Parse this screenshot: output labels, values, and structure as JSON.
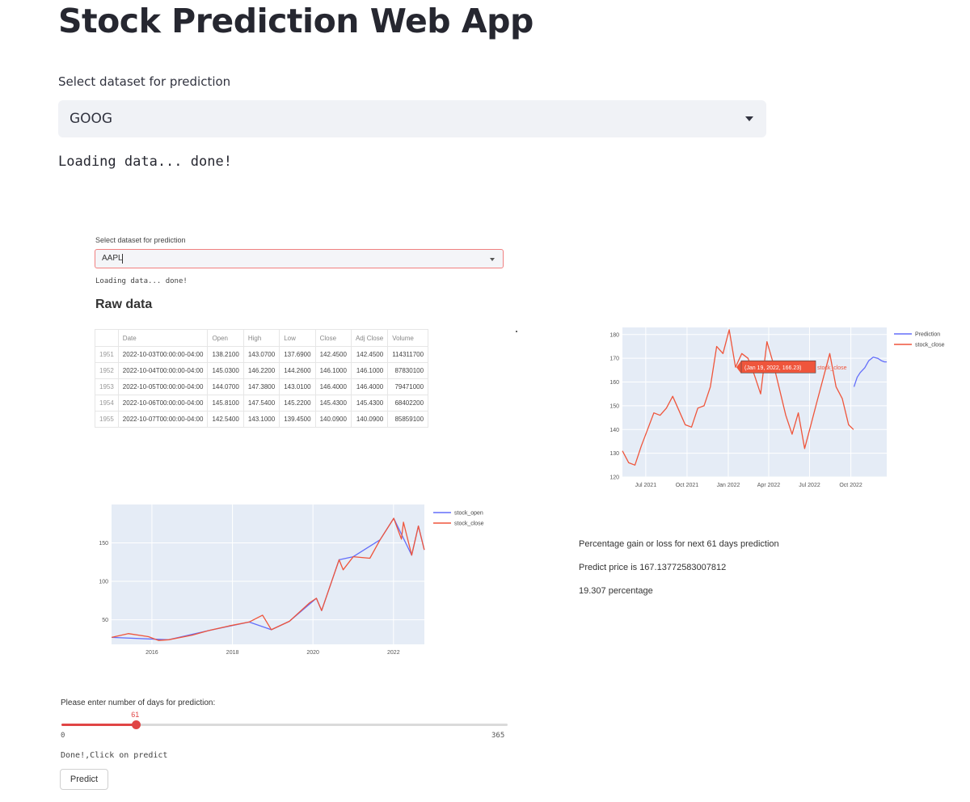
{
  "header": {
    "title": "Stock Prediction Web App",
    "select_label": "Select dataset for prediction",
    "select_value": "GOOG",
    "loading_text": "Loading data... done!"
  },
  "inner": {
    "select_label": "Select dataset for prediction",
    "select_value": "AAPL",
    "loading_text": "Loading data... done!",
    "raw_title": "Raw data",
    "table": {
      "columns": [
        "Date",
        "Open",
        "High",
        "Low",
        "Close",
        "Adj Close",
        "Volume"
      ],
      "rows": [
        [
          "1951",
          "2022-10-03T00:00:00-04:00",
          "138.2100",
          "143.0700",
          "137.6900",
          "142.4500",
          "142.4500",
          "114311700"
        ],
        [
          "1952",
          "2022-10-04T00:00:00-04:00",
          "145.0300",
          "146.2200",
          "144.2600",
          "146.1000",
          "146.1000",
          "87830100"
        ],
        [
          "1953",
          "2022-10-05T00:00:00-04:00",
          "144.0700",
          "147.3800",
          "143.0100",
          "146.4000",
          "146.4000",
          "79471000"
        ],
        [
          "1954",
          "2022-10-06T00:00:00-04:00",
          "145.8100",
          "147.5400",
          "145.2200",
          "145.4300",
          "145.4300",
          "68402200"
        ],
        [
          "1955",
          "2022-10-07T00:00:00-04:00",
          "142.5400",
          "143.1000",
          "139.4500",
          "140.0900",
          "140.0900",
          "85859100"
        ]
      ]
    },
    "percentage_text": "Percentage gain or loss for next 61 days prediction",
    "predict_price_text": "Predict price is 167.13772583007812",
    "percentage_value_text": "19.307 percentage",
    "slider": {
      "label": "Please enter number of days for prediction:",
      "value": 61,
      "value_text": "61",
      "min": 0,
      "min_text": "0",
      "max": 365,
      "max_text": "365",
      "fill_color": "#e04545"
    },
    "done_text": "Done!,Click on predict",
    "predict_button": "Predict"
  },
  "chart_data": [
    {
      "type": "line",
      "title": "",
      "tooltip": {
        "text": "(Jan 19, 2022, 166.23)",
        "series": "stock_close",
        "x": "2022-01-19",
        "y": 166.23
      },
      "x_ticks": [
        "Jul 2021",
        "Oct 2021",
        "Jan 2022",
        "Apr 2022",
        "Jul 2022",
        "Oct 2022"
      ],
      "y_ticks": [
        120,
        130,
        140,
        150,
        160,
        170,
        180
      ],
      "ylim": [
        120,
        183
      ],
      "xlim": [
        "2021-05-10",
        "2022-12-20"
      ],
      "legend_position": "top-right",
      "series": [
        {
          "name": "Prediction",
          "color": "#636efa",
          "points": [
            [
              "2022-10-08",
              158
            ],
            [
              "2022-10-15",
              162
            ],
            [
              "2022-10-22",
              164
            ],
            [
              "2022-11-01",
              166
            ],
            [
              "2022-11-10",
              169
            ],
            [
              "2022-11-20",
              170.5
            ],
            [
              "2022-11-30",
              170
            ],
            [
              "2022-12-08",
              169
            ],
            [
              "2022-12-15",
              168.5
            ],
            [
              "2022-12-20",
              168.5
            ]
          ]
        },
        {
          "name": "stock_close",
          "color": "#ef553b",
          "points": [
            [
              "2021-05-10",
              131
            ],
            [
              "2021-05-24",
              126
            ],
            [
              "2021-06-07",
              125
            ],
            [
              "2021-06-21",
              133
            ],
            [
              "2021-07-05",
              140
            ],
            [
              "2021-07-19",
              147
            ],
            [
              "2021-08-02",
              146
            ],
            [
              "2021-08-16",
              149
            ],
            [
              "2021-08-30",
              154
            ],
            [
              "2021-09-13",
              148
            ],
            [
              "2021-09-27",
              142
            ],
            [
              "2021-10-11",
              141
            ],
            [
              "2021-10-25",
              149
            ],
            [
              "2021-11-08",
              150
            ],
            [
              "2021-11-22",
              158
            ],
            [
              "2021-12-06",
              175
            ],
            [
              "2021-12-20",
              172
            ],
            [
              "2022-01-03",
              182
            ],
            [
              "2022-01-17",
              166.23
            ],
            [
              "2022-01-31",
              172
            ],
            [
              "2022-02-14",
              170
            ],
            [
              "2022-02-28",
              163
            ],
            [
              "2022-03-14",
              155
            ],
            [
              "2022-03-28",
              177
            ],
            [
              "2022-04-11",
              168
            ],
            [
              "2022-04-25",
              157
            ],
            [
              "2022-05-09",
              146
            ],
            [
              "2022-05-23",
              138
            ],
            [
              "2022-06-06",
              147
            ],
            [
              "2022-06-20",
              132
            ],
            [
              "2022-07-04",
              142
            ],
            [
              "2022-07-18",
              152
            ],
            [
              "2022-08-01",
              162
            ],
            [
              "2022-08-15",
              172
            ],
            [
              "2022-08-29",
              158
            ],
            [
              "2022-09-12",
              153
            ],
            [
              "2022-09-26",
              142
            ],
            [
              "2022-10-07",
              140
            ]
          ]
        }
      ]
    },
    {
      "type": "line",
      "title": "",
      "x_ticks": [
        "2016",
        "2018",
        "2020",
        "2022"
      ],
      "y_ticks": [
        50,
        100,
        150
      ],
      "ylim": [
        18,
        200
      ],
      "xlim": [
        "2014-12-31",
        "2022-10-08"
      ],
      "legend_position": "top-right",
      "series": [
        {
          "name": "stock_open",
          "color": "#636efa",
          "points": [
            [
              "2015-01-01",
              27
            ],
            [
              "2016-06-01",
              24
            ],
            [
              "2017-06-01",
              36
            ],
            [
              "2018-06-01",
              47
            ],
            [
              "2018-12-20",
              37
            ],
            [
              "2019-06-01",
              48
            ],
            [
              "2020-02-01",
              78
            ],
            [
              "2020-03-20",
              62
            ],
            [
              "2020-08-25",
              128
            ],
            [
              "2021-01-01",
              132
            ],
            [
              "2021-09-01",
              154
            ],
            [
              "2022-01-03",
              182
            ],
            [
              "2022-06-15",
              134
            ],
            [
              "2022-08-15",
              172
            ],
            [
              "2022-10-07",
              141
            ]
          ]
        },
        {
          "name": "stock_close",
          "color": "#ef553b",
          "points": [
            [
              "2015-01-01",
              27
            ],
            [
              "2015-06-01",
              32
            ],
            [
              "2015-12-01",
              28
            ],
            [
              "2016-03-01",
              23
            ],
            [
              "2016-06-01",
              24
            ],
            [
              "2017-01-01",
              30
            ],
            [
              "2017-06-01",
              36
            ],
            [
              "2017-12-01",
              42
            ],
            [
              "2018-06-01",
              47
            ],
            [
              "2018-10-01",
              56
            ],
            [
              "2018-12-20",
              37
            ],
            [
              "2019-06-01",
              48
            ],
            [
              "2019-12-01",
              72
            ],
            [
              "2020-02-01",
              78
            ],
            [
              "2020-03-20",
              62
            ],
            [
              "2020-08-25",
              128
            ],
            [
              "2020-10-01",
              115
            ],
            [
              "2021-01-01",
              132
            ],
            [
              "2021-06-01",
              130
            ],
            [
              "2021-09-01",
              154
            ],
            [
              "2022-01-03",
              182
            ],
            [
              "2022-03-14",
              155
            ],
            [
              "2022-04-01",
              177
            ],
            [
              "2022-06-15",
              134
            ],
            [
              "2022-08-15",
              172
            ],
            [
              "2022-10-07",
              141
            ]
          ]
        }
      ]
    }
  ]
}
